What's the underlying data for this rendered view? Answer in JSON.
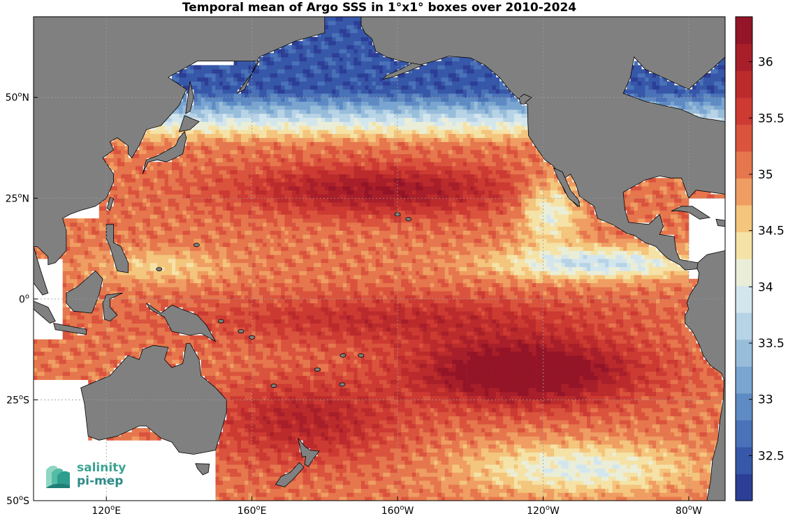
{
  "title": "Temporal mean of Argo SSS in 1°x1° boxes over 2010-2024",
  "map": {
    "lon_range": [
      100,
      290
    ],
    "lat_range": [
      -50,
      70
    ],
    "lon_ticks": [
      {
        "lon": 120,
        "deg": "120",
        "hemi": "E"
      },
      {
        "lon": 160,
        "deg": "160",
        "hemi": "E"
      },
      {
        "lon": 200,
        "deg": "160",
        "hemi": "W"
      },
      {
        "lon": 240,
        "deg": "120",
        "hemi": "W"
      },
      {
        "lon": 280,
        "deg": "80",
        "hemi": "W"
      }
    ],
    "lat_ticks": [
      {
        "lat": 50,
        "deg": "50",
        "hemi": "N"
      },
      {
        "lat": 25,
        "deg": "25",
        "hemi": "N"
      },
      {
        "lat": 0,
        "deg": "0",
        "hemi": ""
      },
      {
        "lat": -25,
        "deg": "25",
        "hemi": "S"
      },
      {
        "lat": -50,
        "deg": "50",
        "hemi": "S"
      }
    ],
    "grid": true,
    "land_color": "#808080",
    "ocean_nodata_color": "#ffffff"
  },
  "colorbar": {
    "min": 32.1,
    "max": 36.4,
    "step": 0.2,
    "ticks": [
      "32.5",
      "33",
      "33.5",
      "34",
      "34.5",
      "35",
      "35.5",
      "36"
    ],
    "colors": [
      "#2c3e96",
      "#3757a8",
      "#4a72b8",
      "#5f8bc4",
      "#7aa5d0",
      "#98bdda",
      "#b7d3e6",
      "#d3e6ee",
      "#eaeed8",
      "#f5e2a6",
      "#f4c57c",
      "#ef9d62",
      "#e6764d",
      "#da533d",
      "#cc3a32",
      "#bb2b2c",
      "#a81f2a",
      "#941527"
    ]
  },
  "logo": {
    "line1": "salinity",
    "line2": "pi-mep"
  }
}
